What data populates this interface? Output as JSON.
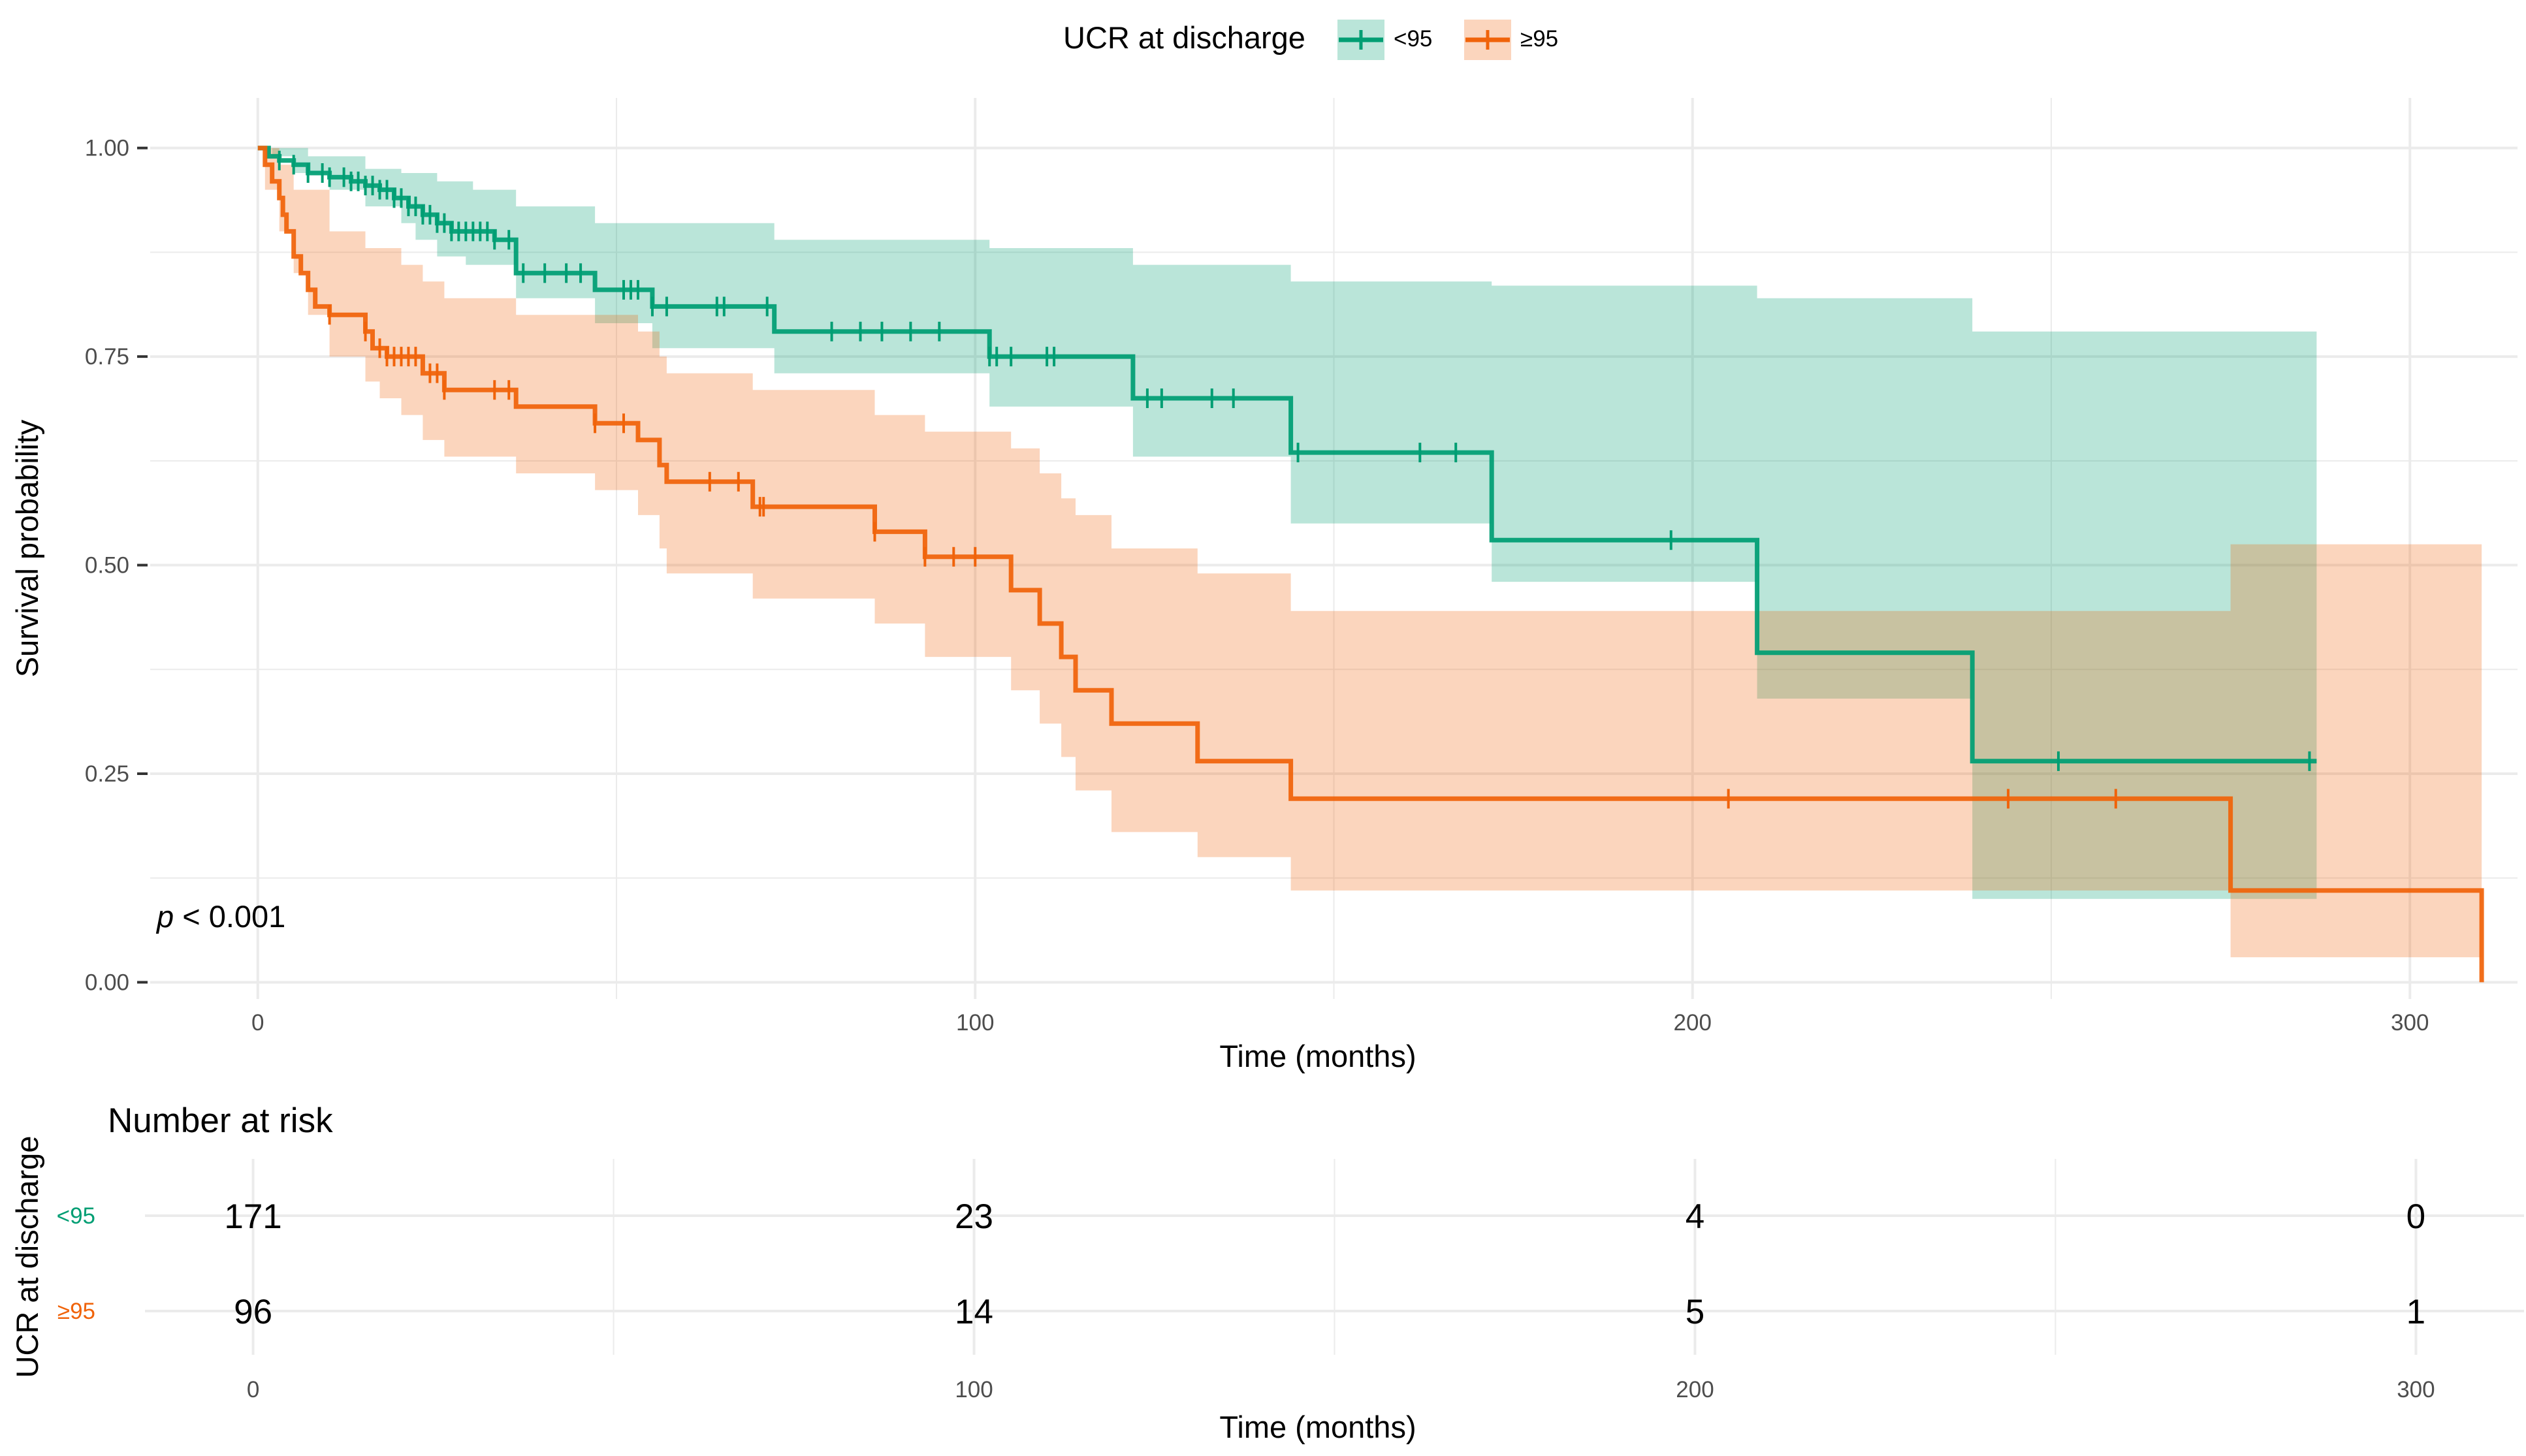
{
  "colors": {
    "lt95": "#009e73",
    "ge95": "#f0630a",
    "lt95_band": "#b9e5da",
    "ge95_band": "#fdd2c0",
    "grid": "#ebebeb"
  },
  "legend": {
    "title": "UCR at discharge",
    "items": [
      "<95",
      "≥95"
    ]
  },
  "chart_data": [
    {
      "type": "line",
      "subtype": "kaplan-meier",
      "xlabel": "Time (months)",
      "ylabel": "Survival probability",
      "xlim": [
        -15,
        315
      ],
      "ylim": [
        -0.02,
        1.06
      ],
      "xticks": [
        0,
        100,
        200,
        300
      ],
      "yticks": [
        0,
        0.25,
        0.5,
        0.75,
        1
      ],
      "ytick_labels": [
        "0.00",
        "0.25",
        "0.50",
        "0.75",
        "1.00"
      ],
      "annotation": {
        "italic": "p",
        "rest": " < 0.001"
      },
      "series": [
        {
          "name": "<95",
          "steps": [
            [
              0,
              1.0
            ],
            [
              1.5,
              0.99
            ],
            [
              3,
              0.985
            ],
            [
              5,
              0.98
            ],
            [
              7,
              0.97
            ],
            [
              10,
              0.965
            ],
            [
              13,
              0.96
            ],
            [
              15,
              0.955
            ],
            [
              17,
              0.95
            ],
            [
              19,
              0.94
            ],
            [
              21,
              0.93
            ],
            [
              23,
              0.92
            ],
            [
              25,
              0.91
            ],
            [
              27,
              0.9
            ],
            [
              33,
              0.89
            ],
            [
              36,
              0.85
            ],
            [
              47,
              0.83
            ],
            [
              55,
              0.81
            ],
            [
              72,
              0.78
            ],
            [
              102,
              0.75
            ],
            [
              122,
              0.7
            ],
            [
              144,
              0.635
            ],
            [
              172,
              0.53
            ],
            [
              209,
              0.395
            ],
            [
              239,
              0.265
            ],
            [
              287,
              0.265
            ]
          ],
          "lower": [
            [
              0,
              1.0
            ],
            [
              2,
              0.99
            ],
            [
              5,
              0.97
            ],
            [
              10,
              0.95
            ],
            [
              15,
              0.93
            ],
            [
              20,
              0.91
            ],
            [
              22,
              0.89
            ],
            [
              25,
              0.87
            ],
            [
              29,
              0.86
            ],
            [
              36,
              0.82
            ],
            [
              47,
              0.79
            ],
            [
              55,
              0.76
            ],
            [
              72,
              0.73
            ],
            [
              102,
              0.69
            ],
            [
              122,
              0.63
            ],
            [
              144,
              0.55
            ],
            [
              172,
              0.48
            ],
            [
              209,
              0.34
            ],
            [
              239,
              0.1
            ],
            [
              287,
              0.1
            ]
          ],
          "upper": [
            [
              0,
              1.0
            ],
            [
              7,
              0.99
            ],
            [
              15,
              0.975
            ],
            [
              20,
              0.97
            ],
            [
              25,
              0.96
            ],
            [
              30,
              0.95
            ],
            [
              36,
              0.93
            ],
            [
              47,
              0.91
            ],
            [
              72,
              0.89
            ],
            [
              102,
              0.88
            ],
            [
              122,
              0.86
            ],
            [
              144,
              0.84
            ],
            [
              172,
              0.835
            ],
            [
              209,
              0.82
            ],
            [
              239,
              0.78
            ],
            [
              287,
              0.78
            ]
          ],
          "censor_times": [
            3,
            5,
            7,
            9,
            10,
            12,
            13,
            14,
            15,
            16,
            17,
            18,
            19,
            20,
            21,
            22,
            23,
            24,
            25,
            26,
            27,
            28,
            29,
            30,
            31,
            32,
            33,
            35,
            37,
            40,
            43,
            45,
            51,
            52,
            53,
            55,
            57,
            64,
            65,
            71,
            80,
            84,
            87,
            91,
            95,
            102,
            103,
            105,
            110,
            111,
            124,
            126,
            133,
            136,
            145,
            162,
            167,
            197,
            251,
            286
          ]
        },
        {
          "name": "≥95",
          "steps": [
            [
              0,
              1.0
            ],
            [
              1,
              0.98
            ],
            [
              2,
              0.96
            ],
            [
              3,
              0.94
            ],
            [
              3.5,
              0.92
            ],
            [
              4,
              0.9
            ],
            [
              5,
              0.87
            ],
            [
              6,
              0.85
            ],
            [
              7,
              0.83
            ],
            [
              8,
              0.81
            ],
            [
              10,
              0.8
            ],
            [
              15,
              0.78
            ],
            [
              16,
              0.76
            ],
            [
              18,
              0.75
            ],
            [
              23,
              0.73
            ],
            [
              26,
              0.71
            ],
            [
              36,
              0.69
            ],
            [
              47,
              0.67
            ],
            [
              53,
              0.65
            ],
            [
              56,
              0.62
            ],
            [
              57,
              0.6
            ],
            [
              69,
              0.57
            ],
            [
              86,
              0.54
            ],
            [
              93,
              0.51
            ],
            [
              105,
              0.47
            ],
            [
              109,
              0.43
            ],
            [
              112,
              0.39
            ],
            [
              114,
              0.35
            ],
            [
              119,
              0.31
            ],
            [
              131,
              0.265
            ],
            [
              144,
              0.22
            ],
            [
              275,
              0.11
            ],
            [
              310,
              0.0
            ]
          ],
          "lower": [
            [
              0,
              1.0
            ],
            [
              1,
              0.95
            ],
            [
              3,
              0.9
            ],
            [
              5,
              0.85
            ],
            [
              7,
              0.8
            ],
            [
              10,
              0.75
            ],
            [
              15,
              0.72
            ],
            [
              17,
              0.7
            ],
            [
              20,
              0.68
            ],
            [
              23,
              0.65
            ],
            [
              26,
              0.63
            ],
            [
              36,
              0.61
            ],
            [
              47,
              0.59
            ],
            [
              53,
              0.56
            ],
            [
              56,
              0.52
            ],
            [
              57,
              0.49
            ],
            [
              69,
              0.46
            ],
            [
              86,
              0.43
            ],
            [
              93,
              0.39
            ],
            [
              105,
              0.35
            ],
            [
              109,
              0.31
            ],
            [
              112,
              0.27
            ],
            [
              114,
              0.23
            ],
            [
              119,
              0.18
            ],
            [
              131,
              0.15
            ],
            [
              144,
              0.11
            ],
            [
              275,
              0.03
            ],
            [
              310,
              0.03
            ]
          ],
          "upper": [
            [
              0,
              1.0
            ],
            [
              3,
              0.98
            ],
            [
              5,
              0.95
            ],
            [
              10,
              0.9
            ],
            [
              15,
              0.88
            ],
            [
              20,
              0.86
            ],
            [
              23,
              0.84
            ],
            [
              26,
              0.82
            ],
            [
              36,
              0.8
            ],
            [
              47,
              0.8
            ],
            [
              53,
              0.78
            ],
            [
              56,
              0.75
            ],
            [
              57,
              0.73
            ],
            [
              69,
              0.71
            ],
            [
              86,
              0.68
            ],
            [
              93,
              0.66
            ],
            [
              105,
              0.64
            ],
            [
              109,
              0.61
            ],
            [
              112,
              0.58
            ],
            [
              114,
              0.56
            ],
            [
              119,
              0.52
            ],
            [
              131,
              0.49
            ],
            [
              144,
              0.445
            ],
            [
              275,
              0.525
            ],
            [
              310,
              0.525
            ]
          ],
          "censor_times": [
            10,
            15,
            17,
            18,
            19,
            20,
            21,
            22,
            24,
            25,
            26,
            33,
            35,
            47,
            51,
            63,
            67,
            70,
            70.5,
            86,
            93,
            97,
            100,
            205,
            244,
            259
          ]
        }
      ]
    },
    {
      "type": "table",
      "title": "Number at risk",
      "ylabel": "UCR at discharge",
      "xlabel": "Time (months)",
      "xticks": [
        0,
        100,
        200,
        300
      ],
      "rows": [
        {
          "label": "<95",
          "values": [
            171,
            23,
            4,
            0
          ]
        },
        {
          "label": "≥95",
          "values": [
            96,
            14,
            5,
            1
          ]
        }
      ]
    }
  ]
}
